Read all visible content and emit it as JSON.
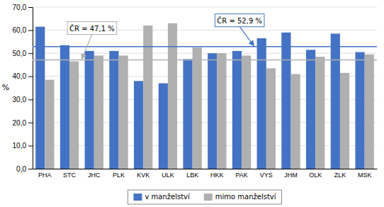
{
  "chart_data": {
    "type": "bar",
    "categories": [
      "PHA",
      "STC",
      "JHC",
      "PLK",
      "KVK",
      "ULK",
      "LBK",
      "HKK",
      "PAK",
      "VYS",
      "JHM",
      "OLK",
      "ZLK",
      "MSK"
    ],
    "series": [
      {
        "name": "v manželství",
        "color": "#4472C4",
        "values": [
          61.5,
          53.5,
          51.0,
          51.0,
          38.0,
          37.0,
          47.5,
          50.0,
          51.0,
          56.5,
          59.0,
          51.5,
          58.5,
          50.5
        ]
      },
      {
        "name": "mimo manželství",
        "color": "#B0B0B0",
        "values": [
          38.5,
          46.5,
          49.0,
          49.0,
          62.0,
          63.0,
          52.5,
          50.0,
          49.0,
          43.5,
          41.0,
          48.5,
          41.5,
          49.5
        ]
      }
    ],
    "y_label": "%",
    "ylim": [
      0,
      70
    ],
    "yticks": [
      {
        "value": 0,
        "label": "0,0"
      },
      {
        "value": 10,
        "label": "10,0"
      },
      {
        "value": 20,
        "label": "20,0"
      },
      {
        "value": 30,
        "label": "30,0"
      },
      {
        "value": 40,
        "label": "40,0"
      },
      {
        "value": 50,
        "label": "50,0"
      },
      {
        "value": 60,
        "label": "60,0"
      },
      {
        "value": 70,
        "label": "70,0"
      }
    ],
    "grid": true,
    "legend": "bottom",
    "reference_lines": [
      {
        "value": 47.1,
        "color": "#B0B0B0",
        "label": "ČR = 47,1 %"
      },
      {
        "value": 52.9,
        "color": "#4472C4",
        "label": "ČR = 52,9 %"
      }
    ]
  }
}
